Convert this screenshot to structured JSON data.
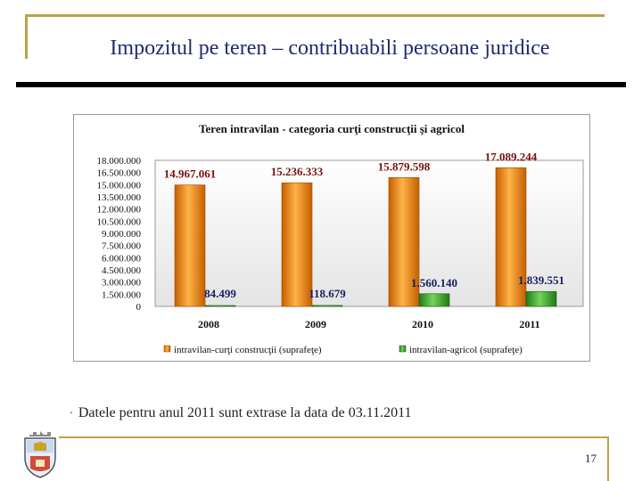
{
  "slide": {
    "title": "Impozitul pe teren – contribuabili persoane juridice",
    "footnote": "Datele pentru anul 2011 sunt extrase la data de 03.11.2011",
    "page_number": "17"
  },
  "colors": {
    "accent": "#b9a446",
    "title": "#1f2a6e",
    "series_orange": "#f5890a",
    "series_green": "#3aa629",
    "label_red": "#7a1010",
    "label_navy": "#1b2060"
  },
  "chart_data": {
    "type": "bar",
    "title": "Teren intravilan - categoria curţi construcţii şi agricol",
    "categories": [
      "2008",
      "2009",
      "2010",
      "2011"
    ],
    "series": [
      {
        "name": "intravilan-curţi construcţii (suprafeţe)",
        "values": [
          14967061,
          15236333,
          15879598,
          17089244
        ],
        "labels": [
          "14.967.061",
          "15.236.333",
          "15.879.598",
          "17.089.244"
        ]
      },
      {
        "name": "intravilan-agricol (suprafeţe)",
        "values": [
          84499,
          118679,
          1560140,
          1839551
        ],
        "labels": [
          "84.499",
          "118.679",
          "1.560.140",
          "1.839.551"
        ]
      }
    ],
    "ylim": [
      0,
      18000000
    ],
    "yticks": [
      "0",
      "1.500.000",
      "3.000.000",
      "4.500.000",
      "6.000.000",
      "7.500.000",
      "9.000.000",
      "10.500.000",
      "12.000.000",
      "13.500.000",
      "15.000.000",
      "16.500.000",
      "18.000.000"
    ],
    "legend_position": "bottom",
    "grid": false
  }
}
